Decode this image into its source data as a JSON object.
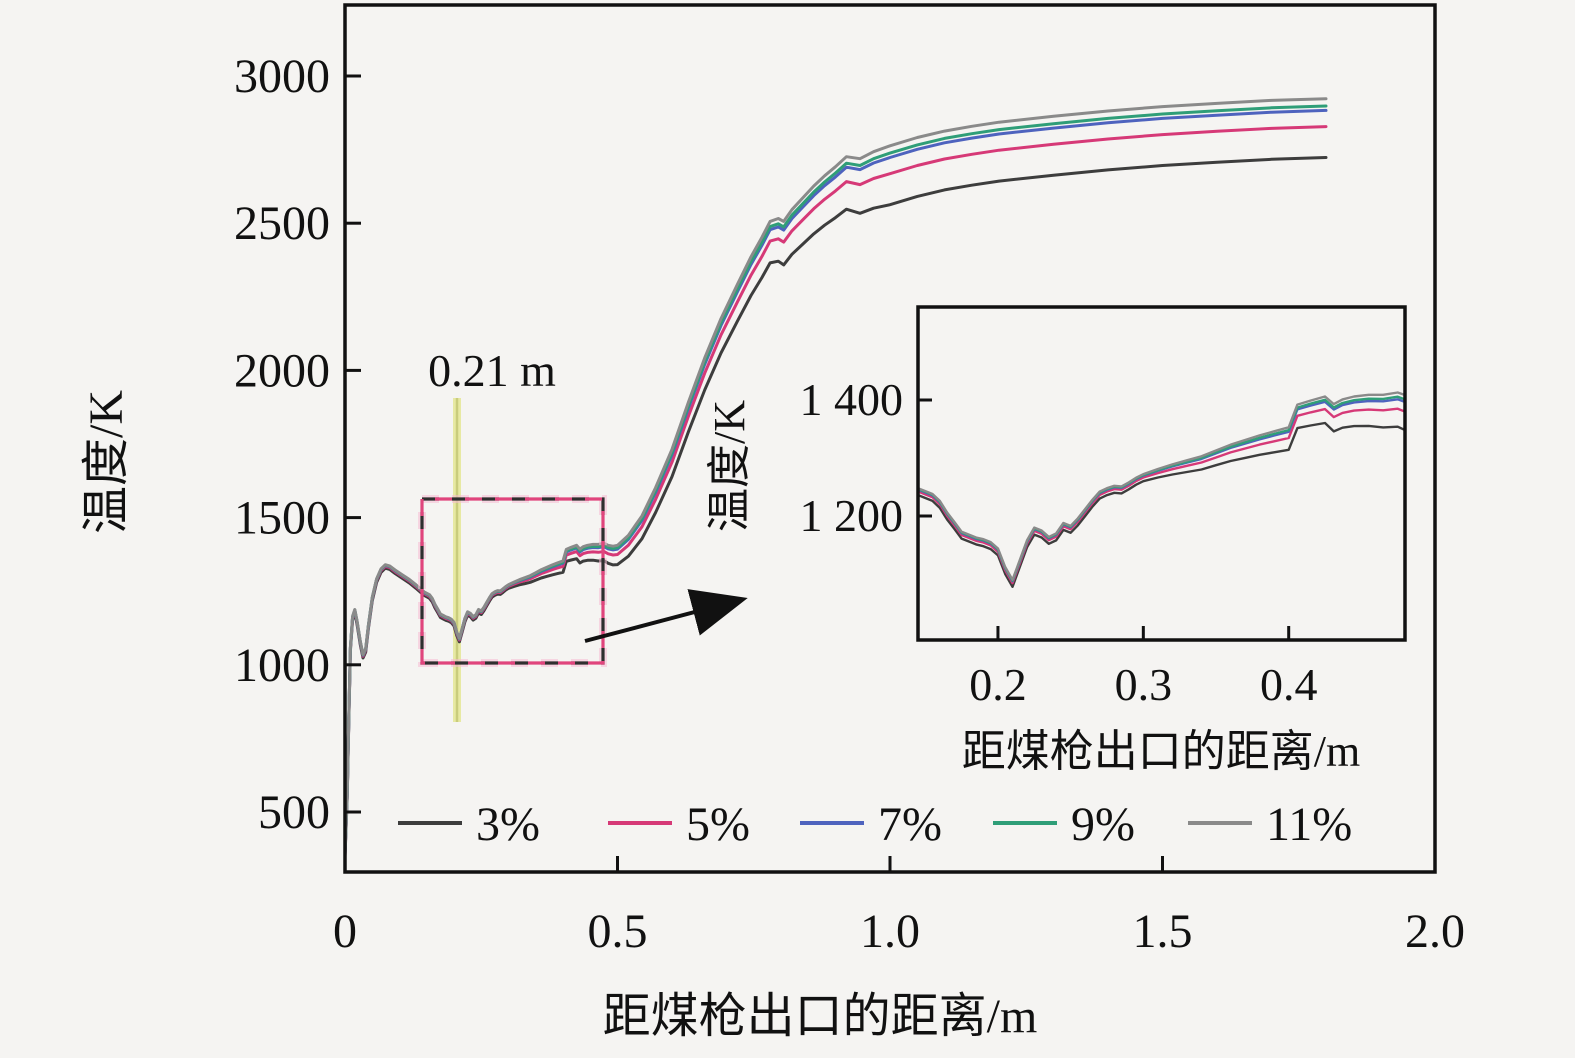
{
  "figure": {
    "background_color": "#f5f4f2",
    "annotation": {
      "label": "0.21 m",
      "x_value_m": 0.21,
      "highlight_line_color": "#e7e9a3",
      "highlight_line_core_color": "#c9cc7d"
    },
    "dashed_box": {
      "dash_color_1": "#2f2f2f",
      "dash_color_2": "#e0457d",
      "halo_color": "#f5bcd4",
      "x_range_m": [
        0.141,
        0.474
      ],
      "temp_range_K": [
        1006,
        1563
      ]
    },
    "axis_color": "#111111"
  },
  "chart_data": {
    "type": "line",
    "title": "",
    "xlabel": "距煤枪出口的距离/m",
    "ylabel": "温度/K",
    "xlim": [
      0,
      2.0
    ],
    "ylim": [
      296,
      3240
    ],
    "grid": false,
    "legend_position": "bottom-inside",
    "x_ticks": [
      "0",
      "0.5",
      "1.0",
      "1.5",
      "2.0"
    ],
    "x_tick_values": [
      0,
      0.5,
      1.0,
      1.5,
      2.0
    ],
    "y_ticks": [
      "3000",
      "2500",
      "2000",
      "1500",
      "1000",
      "500"
    ],
    "y_tick_values": [
      3000,
      2500,
      2000,
      1500,
      1000,
      500
    ],
    "series": [
      {
        "name": "3%",
        "color": "#3d3d3d",
        "offset_below_top_K": 200,
        "end_value_K": 2723
      },
      {
        "name": "5%",
        "color": "#d63977",
        "offset_below_top_K": 95,
        "end_value_K": 2828
      },
      {
        "name": "7%",
        "color": "#4e63be",
        "offset_below_top_K": 40,
        "end_value_K": 2883
      },
      {
        "name": "9%",
        "color": "#2f9e78",
        "offset_below_top_K": 25,
        "end_value_K": 2898
      },
      {
        "name": "11%",
        "color": "#8a8a8a",
        "offset_below_top_K": 0,
        "end_value_K": 2923
      }
    ],
    "spread_ramp": {
      "start": 0.3,
      "end": 1.0,
      "min_frac": 0.06
    },
    "base_curve_points_x_m_T_K": [
      [
        0.0,
        360
      ],
      [
        0.004,
        560
      ],
      [
        0.007,
        820
      ],
      [
        0.01,
        1060
      ],
      [
        0.014,
        1165
      ],
      [
        0.018,
        1188
      ],
      [
        0.022,
        1150
      ],
      [
        0.028,
        1080
      ],
      [
        0.033,
        1035
      ],
      [
        0.038,
        1055
      ],
      [
        0.043,
        1135
      ],
      [
        0.05,
        1230
      ],
      [
        0.058,
        1292
      ],
      [
        0.066,
        1326
      ],
      [
        0.074,
        1340
      ],
      [
        0.082,
        1336
      ],
      [
        0.092,
        1322
      ],
      [
        0.105,
        1306
      ],
      [
        0.118,
        1290
      ],
      [
        0.13,
        1272
      ],
      [
        0.14,
        1256
      ],
      [
        0.145,
        1248
      ],
      [
        0.15,
        1243
      ],
      [
        0.155,
        1238
      ],
      [
        0.16,
        1226
      ],
      [
        0.165,
        1206
      ],
      [
        0.17,
        1190
      ],
      [
        0.175,
        1173
      ],
      [
        0.18,
        1168
      ],
      [
        0.185,
        1163
      ],
      [
        0.19,
        1160
      ],
      [
        0.195,
        1155
      ],
      [
        0.2,
        1144
      ],
      [
        0.205,
        1112
      ],
      [
        0.21,
        1090
      ],
      [
        0.215,
        1124
      ],
      [
        0.22,
        1158
      ],
      [
        0.225,
        1180
      ],
      [
        0.23,
        1175
      ],
      [
        0.235,
        1164
      ],
      [
        0.24,
        1170
      ],
      [
        0.245,
        1188
      ],
      [
        0.25,
        1183
      ],
      [
        0.255,
        1196
      ],
      [
        0.26,
        1212
      ],
      [
        0.265,
        1228
      ],
      [
        0.27,
        1242
      ],
      [
        0.275,
        1248
      ],
      [
        0.28,
        1252
      ],
      [
        0.285,
        1251
      ],
      [
        0.29,
        1258
      ],
      [
        0.295,
        1266
      ],
      [
        0.3,
        1272
      ],
      [
        0.31,
        1281
      ],
      [
        0.32,
        1289
      ],
      [
        0.33,
        1296
      ],
      [
        0.34,
        1303
      ],
      [
        0.35,
        1313
      ],
      [
        0.36,
        1323
      ],
      [
        0.37,
        1331
      ],
      [
        0.38,
        1339
      ],
      [
        0.39,
        1346
      ],
      [
        0.4,
        1353
      ],
      [
        0.406,
        1392
      ],
      [
        0.415,
        1399
      ],
      [
        0.425,
        1406
      ],
      [
        0.431,
        1393
      ],
      [
        0.437,
        1401
      ],
      [
        0.445,
        1406
      ],
      [
        0.455,
        1409
      ],
      [
        0.465,
        1409
      ],
      [
        0.475,
        1413
      ],
      [
        0.483,
        1406
      ],
      [
        0.492,
        1403
      ],
      [
        0.5,
        1406
      ],
      [
        0.52,
        1440
      ],
      [
        0.545,
        1506
      ],
      [
        0.57,
        1602
      ],
      [
        0.6,
        1732
      ],
      [
        0.63,
        1892
      ],
      [
        0.66,
        2042
      ],
      [
        0.69,
        2176
      ],
      [
        0.72,
        2292
      ],
      [
        0.745,
        2386
      ],
      [
        0.765,
        2452
      ],
      [
        0.78,
        2506
      ],
      [
        0.795,
        2516
      ],
      [
        0.805,
        2506
      ],
      [
        0.82,
        2546
      ],
      [
        0.84,
        2586
      ],
      [
        0.86,
        2626
      ],
      [
        0.88,
        2661
      ],
      [
        0.9,
        2692
      ],
      [
        0.92,
        2726
      ],
      [
        0.945,
        2719
      ],
      [
        0.97,
        2743
      ],
      [
        1.0,
        2763
      ],
      [
        1.05,
        2791
      ],
      [
        1.1,
        2813
      ],
      [
        1.15,
        2829
      ],
      [
        1.2,
        2843
      ],
      [
        1.3,
        2863
      ],
      [
        1.4,
        2881
      ],
      [
        1.5,
        2896
      ],
      [
        1.6,
        2907
      ],
      [
        1.7,
        2917
      ],
      [
        1.8,
        2923
      ]
    ],
    "inset": {
      "xlabel": "距煤枪出口的距离/m",
      "ylabel": "温度/K",
      "xlim": [
        0.145,
        0.48
      ],
      "ylim": [
        986,
        1560
      ],
      "x_ticks": [
        "0.2",
        "0.3",
        "0.4"
      ],
      "x_tick_values": [
        0.2,
        0.3,
        0.4
      ],
      "y_ticks": [
        "1 400",
        "1 200"
      ],
      "y_tick_values": [
        1400,
        1200
      ]
    }
  }
}
